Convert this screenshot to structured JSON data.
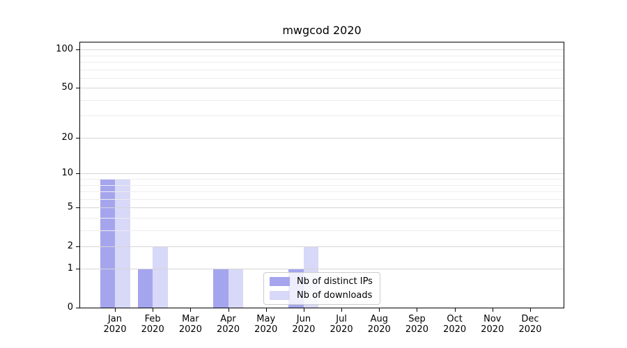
{
  "title": "mwgcod 2020",
  "chart_data": {
    "type": "bar",
    "title": "mwgcod 2020",
    "categories": [
      "Jan",
      "Feb",
      "Mar",
      "Apr",
      "May",
      "Jun",
      "Jul",
      "Aug",
      "Sep",
      "Oct",
      "Nov",
      "Dec"
    ],
    "category_year": "2020",
    "series": [
      {
        "name": "Nb of distinct IPs",
        "color": "#a5a5ee",
        "values": [
          9,
          1,
          0,
          1,
          0,
          1,
          0,
          0,
          0,
          0,
          0,
          0
        ]
      },
      {
        "name": "Nb of downloads",
        "color": "#d8d8f8",
        "values": [
          9,
          2,
          0,
          1,
          0,
          2,
          0,
          0,
          0,
          0,
          0,
          0
        ]
      }
    ],
    "xlabel": "",
    "ylabel": "",
    "yscale": "log1p",
    "ylim": [
      0,
      114
    ],
    "y_major_ticks": [
      0,
      1,
      2,
      5,
      10,
      20,
      50,
      100
    ],
    "y_minor_ticks": [
      3,
      4,
      6,
      7,
      8,
      9,
      30,
      40,
      60,
      70,
      80,
      90
    ],
    "grid": true,
    "grid_on_top": true,
    "legend_position": "lower center"
  },
  "colors": {
    "major_grid": "#d6d6d6",
    "minor_grid": "#ededed",
    "axis": "#000000",
    "legend_border": "#cccccc"
  }
}
